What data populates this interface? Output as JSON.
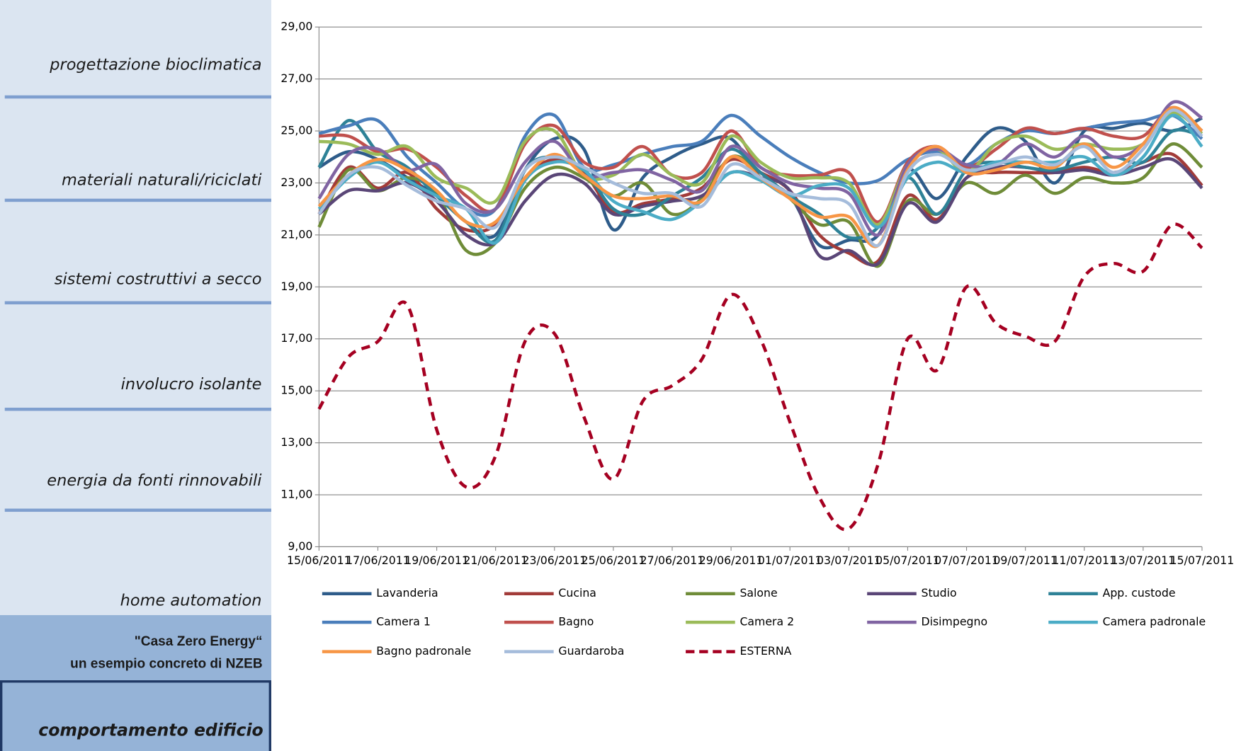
{
  "sidebar": {
    "items": [
      "progettazione bioclimatica",
      "materiali naturali/riciclati",
      "sistemi costruttivi a secco",
      "involucro isolante",
      "energia da fonti rinnovabili",
      "home automation"
    ],
    "highlight": [
      "\"Casa Zero Energy“",
      "un esempio concreto di NZEB"
    ],
    "active": "comportamento edificio"
  },
  "chart_data": {
    "type": "line",
    "categories": [
      "15/06/2011",
      null,
      "17/06/2011",
      null,
      "19/06/2011",
      null,
      "21/06/2011",
      null,
      "23/06/2011",
      null,
      "25/06/2011",
      null,
      "27/06/2011",
      null,
      "29/06/2011",
      null,
      "01/07/2011",
      null,
      "03/07/2011",
      null,
      "05/07/2011",
      null,
      "07/07/2011",
      null,
      "09/07/2011",
      null,
      "11/07/2011",
      null,
      "13/07/2011",
      null,
      "15/07/2011"
    ],
    "ylim": [
      9,
      29
    ],
    "yticks": [
      {
        "value": 9,
        "label": "9,00"
      },
      {
        "value": 11,
        "label": "11,00"
      },
      {
        "value": 13,
        "label": "13,00"
      },
      {
        "value": 15,
        "label": "15,00"
      },
      {
        "value": 17,
        "label": "17,00"
      },
      {
        "value": 19,
        "label": "19,00"
      },
      {
        "value": 21,
        "label": "21,00"
      },
      {
        "value": 23,
        "label": "23,00"
      },
      {
        "value": 25,
        "label": "25,00"
      },
      {
        "value": 27,
        "label": "27,00"
      },
      {
        "value": 29,
        "label": "29,00"
      }
    ],
    "grid": true,
    "legend": "bottom",
    "series": [
      {
        "name": "Lavanderia",
        "color": "#2e5c8a",
        "values": [
          23.6,
          24.2,
          23.9,
          23.2,
          22.5,
          21.5,
          21.0,
          23.5,
          24.7,
          24.3,
          21.2,
          23.2,
          24.0,
          24.5,
          24.7,
          23.2,
          22.5,
          20.6,
          20.8,
          21.0,
          23.5,
          22.4,
          24.0,
          25.1,
          24.6,
          23.0,
          25.0,
          25.1,
          25.3,
          25.0,
          25.5
        ]
      },
      {
        "name": "Cucina",
        "color": "#a23b39",
        "values": [
          21.8,
          23.6,
          22.8,
          23.4,
          22.0,
          21.2,
          21.4,
          23.2,
          23.9,
          23.4,
          21.9,
          22.2,
          22.4,
          22.8,
          23.9,
          23.4,
          22.7,
          21.0,
          20.3,
          20.0,
          22.5,
          21.6,
          23.2,
          23.4,
          23.4,
          23.4,
          23.6,
          23.4,
          23.8,
          24.1,
          22.9
        ]
      },
      {
        "name": "Salone",
        "color": "#6f8c38",
        "values": [
          21.3,
          23.5,
          22.7,
          23.2,
          22.6,
          20.4,
          20.7,
          22.8,
          23.6,
          23.2,
          22.5,
          23.0,
          21.8,
          22.4,
          24.0,
          23.4,
          22.4,
          21.4,
          21.5,
          19.8,
          22.3,
          21.8,
          23.0,
          22.6,
          23.3,
          22.6,
          23.2,
          23.0,
          23.2,
          24.5,
          23.6
        ]
      },
      {
        "name": "Studio",
        "color": "#5a4677",
        "values": [
          21.8,
          22.7,
          22.7,
          23.0,
          22.3,
          21.0,
          20.7,
          22.3,
          23.3,
          23.0,
          21.8,
          22.1,
          22.3,
          22.5,
          23.4,
          23.2,
          22.7,
          20.2,
          20.4,
          19.9,
          22.2,
          21.5,
          23.2,
          23.6,
          23.6,
          23.4,
          23.5,
          23.3,
          23.6,
          23.9,
          22.8
        ]
      },
      {
        "name": "App. custode",
        "color": "#2e8297",
        "values": [
          23.6,
          25.4,
          24.2,
          23.6,
          22.5,
          21.5,
          20.8,
          23.5,
          24.0,
          23.5,
          22.0,
          21.8,
          22.5,
          23.2,
          24.3,
          23.4,
          22.5,
          21.8,
          20.9,
          21.3,
          23.2,
          21.8,
          23.5,
          23.8,
          23.6,
          23.5,
          23.8,
          24.0,
          23.8,
          25.0,
          24.8
        ]
      },
      {
        "name": "Camera 1",
        "color": "#4a7ebb",
        "values": [
          24.9,
          25.2,
          25.4,
          24.0,
          23.0,
          22.0,
          22.0,
          24.8,
          25.6,
          23.6,
          23.7,
          24.1,
          24.4,
          24.6,
          25.6,
          24.8,
          24.0,
          23.4,
          23.0,
          23.1,
          23.9,
          24.2,
          23.7,
          24.5,
          25.0,
          24.9,
          25.1,
          25.3,
          25.4,
          25.6,
          24.7
        ]
      },
      {
        "name": "Bagno",
        "color": "#c0504d",
        "values": [
          24.8,
          24.8,
          24.2,
          24.3,
          23.6,
          22.5,
          22.0,
          24.5,
          25.2,
          23.8,
          23.6,
          24.4,
          23.3,
          23.4,
          25.0,
          23.6,
          23.3,
          23.3,
          23.4,
          21.5,
          23.8,
          24.4,
          23.6,
          24.3,
          25.1,
          24.9,
          25.1,
          24.8,
          24.8,
          25.9,
          25.0
        ]
      },
      {
        "name": "Camera 2",
        "color": "#9bbb59",
        "values": [
          24.6,
          24.5,
          24.1,
          24.4,
          23.2,
          22.8,
          22.3,
          24.6,
          25.0,
          23.3,
          23.3,
          24.1,
          23.3,
          23.0,
          24.8,
          23.8,
          23.2,
          23.2,
          23.0,
          21.4,
          23.7,
          24.3,
          23.4,
          24.5,
          24.8,
          24.3,
          24.5,
          24.3,
          24.5,
          25.7,
          24.9
        ]
      },
      {
        "name": "Disimpegno",
        "color": "#8064a2",
        "values": [
          22.4,
          24.1,
          24.3,
          23.5,
          23.7,
          22.2,
          22.0,
          23.8,
          24.6,
          23.3,
          23.4,
          23.5,
          23.1,
          22.7,
          24.4,
          23.6,
          23.0,
          22.8,
          22.6,
          21.0,
          23.7,
          24.3,
          23.7,
          23.7,
          24.5,
          24.0,
          24.8,
          24.0,
          24.5,
          26.1,
          25.5
        ]
      },
      {
        "name": "Camera padronale",
        "color": "#4bacc6",
        "values": [
          22.0,
          23.2,
          23.8,
          23.1,
          22.5,
          22.0,
          20.7,
          23.1,
          23.8,
          23.5,
          22.3,
          21.9,
          21.6,
          22.3,
          23.4,
          23.1,
          22.5,
          22.9,
          22.8,
          21.3,
          23.2,
          23.8,
          23.4,
          23.8,
          23.8,
          23.8,
          24.0,
          23.3,
          24.0,
          25.6,
          24.4
        ]
      },
      {
        "name": "Bagno padronale",
        "color": "#f79646",
        "values": [
          22.1,
          23.3,
          23.9,
          23.5,
          22.7,
          21.5,
          21.5,
          23.2,
          24.1,
          23.3,
          22.5,
          22.4,
          22.5,
          22.3,
          24.0,
          23.2,
          22.4,
          21.7,
          21.7,
          20.6,
          23.5,
          24.4,
          23.4,
          23.5,
          23.8,
          23.6,
          24.5,
          23.6,
          24.5,
          25.9,
          25.0
        ]
      },
      {
        "name": "Guardaroba",
        "color": "#a5bcdb",
        "values": [
          21.8,
          23.3,
          23.6,
          22.9,
          22.3,
          22.0,
          21.3,
          23.5,
          24.0,
          23.6,
          23.0,
          22.6,
          22.6,
          22.1,
          23.7,
          23.2,
          22.6,
          22.4,
          22.2,
          20.6,
          23.4,
          24.1,
          23.5,
          23.7,
          24.0,
          23.7,
          24.4,
          23.4,
          24.3,
          25.8,
          24.8
        ]
      },
      {
        "name": "ESTERNA",
        "color": "#a50021",
        "dashed": true,
        "values": [
          14.3,
          16.3,
          16.9,
          18.3,
          13.5,
          11.3,
          12.5,
          16.9,
          17.2,
          14.0,
          11.6,
          14.6,
          15.2,
          16.2,
          18.7,
          17.0,
          13.8,
          10.9,
          9.7,
          12.2,
          17.0,
          15.8,
          19.0,
          17.6,
          17.1,
          16.9,
          19.4,
          19.9,
          19.6,
          21.4,
          20.5
        ]
      }
    ]
  }
}
